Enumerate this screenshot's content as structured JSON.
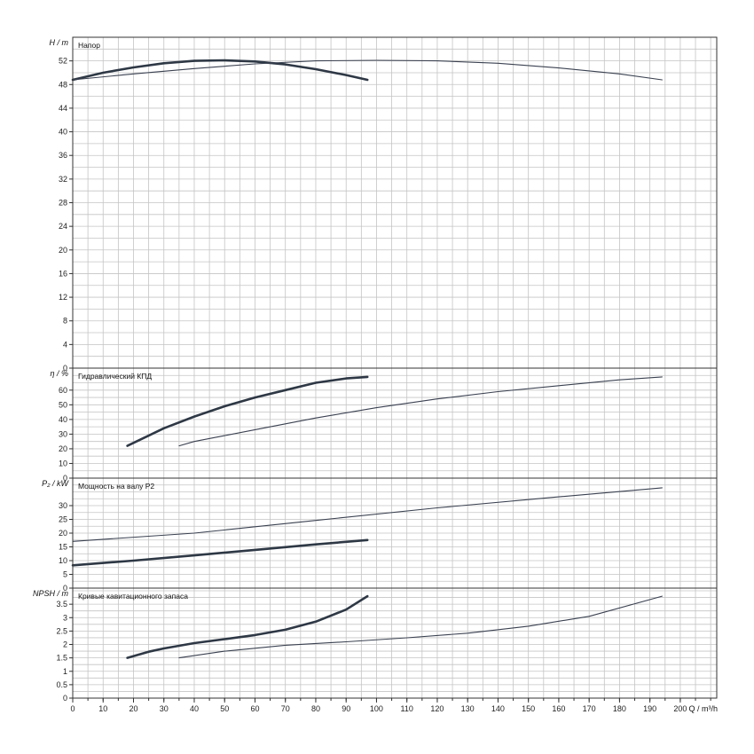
{
  "chart_data": {
    "type": "line",
    "x": {
      "label": "Q / m³/h",
      "range": [
        0,
        212
      ],
      "ticks": [
        0,
        10,
        20,
        30,
        40,
        50,
        60,
        70,
        80,
        90,
        100,
        110,
        120,
        130,
        140,
        150,
        160,
        170,
        180,
        190,
        200
      ],
      "grid_step": 5
    },
    "panels": [
      {
        "id": "head",
        "title": "Напор",
        "ylabel": "H / m",
        "yrange": [
          0,
          56
        ],
        "yticks": [
          0,
          4,
          8,
          12,
          16,
          20,
          24,
          28,
          32,
          36,
          40,
          44,
          48,
          52
        ],
        "grid_step": 2,
        "series": [
          {
            "weight": "thick",
            "points": [
              [
                0,
                48.8
              ],
              [
                10,
                50.0
              ],
              [
                20,
                50.9
              ],
              [
                30,
                51.6
              ],
              [
                40,
                52.0
              ],
              [
                50,
                52.1
              ],
              [
                60,
                51.9
              ],
              [
                70,
                51.4
              ],
              [
                80,
                50.6
              ],
              [
                90,
                49.6
              ],
              [
                97,
                48.8
              ]
            ]
          },
          {
            "weight": "thin",
            "points": [
              [
                0,
                48.8
              ],
              [
                20,
                49.8
              ],
              [
                40,
                50.7
              ],
              [
                60,
                51.5
              ],
              [
                80,
                52.0
              ],
              [
                100,
                52.1
              ],
              [
                120,
                52.0
              ],
              [
                140,
                51.6
              ],
              [
                160,
                50.8
              ],
              [
                180,
                49.8
              ],
              [
                194,
                48.8
              ]
            ]
          }
        ]
      },
      {
        "id": "efficiency",
        "title": "Гидравлический КПД",
        "ylabel": "η / %",
        "yrange": [
          0,
          75
        ],
        "yticks": [
          0,
          10,
          20,
          30,
          40,
          50,
          60
        ],
        "grid_step": 5,
        "series": [
          {
            "weight": "thick",
            "points": [
              [
                18,
                22
              ],
              [
                25,
                29
              ],
              [
                30,
                34
              ],
              [
                40,
                42
              ],
              [
                50,
                49
              ],
              [
                60,
                55
              ],
              [
                70,
                60
              ],
              [
                80,
                65
              ],
              [
                90,
                68
              ],
              [
                97,
                69
              ]
            ]
          },
          {
            "weight": "thin",
            "points": [
              [
                35,
                22
              ],
              [
                40,
                25
              ],
              [
                50,
                29
              ],
              [
                60,
                33
              ],
              [
                80,
                41
              ],
              [
                100,
                48
              ],
              [
                120,
                54
              ],
              [
                140,
                59
              ],
              [
                160,
                63
              ],
              [
                180,
                67
              ],
              [
                194,
                69
              ]
            ]
          }
        ]
      },
      {
        "id": "power",
        "title": "Мощность на валу P2",
        "ylabel": "P₂ / kW",
        "yrange": [
          0,
          40
        ],
        "yticks": [
          0,
          5,
          10,
          15,
          20,
          25,
          30
        ],
        "grid_step": 2.5,
        "series": [
          {
            "weight": "thick",
            "points": [
              [
                0,
                8.3
              ],
              [
                20,
                10.0
              ],
              [
                40,
                11.9
              ],
              [
                60,
                13.9
              ],
              [
                80,
                15.9
              ],
              [
                97,
                17.5
              ]
            ]
          },
          {
            "weight": "thin",
            "points": [
              [
                0,
                17.0
              ],
              [
                40,
                20.0
              ],
              [
                80,
                24.6
              ],
              [
                120,
                29.2
              ],
              [
                160,
                33.2
              ],
              [
                194,
                36.5
              ]
            ]
          }
        ]
      },
      {
        "id": "npsh",
        "title": "Кривые кавитационного запаса",
        "ylabel": "NPSH / m",
        "yrange": [
          0,
          4.1
        ],
        "yticks": [
          0,
          0.5,
          1,
          1.5,
          2,
          2.5,
          3,
          3.5
        ],
        "grid_step": 0.25,
        "series": [
          {
            "weight": "thick",
            "points": [
              [
                18,
                1.5
              ],
              [
                25,
                1.73
              ],
              [
                30,
                1.85
              ],
              [
                40,
                2.05
              ],
              [
                50,
                2.2
              ],
              [
                60,
                2.35
              ],
              [
                70,
                2.55
              ],
              [
                80,
                2.85
              ],
              [
                90,
                3.3
              ],
              [
                97,
                3.8
              ]
            ]
          },
          {
            "weight": "thin",
            "points": [
              [
                35,
                1.5
              ],
              [
                50,
                1.75
              ],
              [
                70,
                1.97
              ],
              [
                90,
                2.1
              ],
              [
                110,
                2.25
              ],
              [
                130,
                2.42
              ],
              [
                150,
                2.68
              ],
              [
                170,
                3.05
              ],
              [
                194,
                3.8
              ]
            ]
          }
        ]
      }
    ],
    "grid": true,
    "legend": "none"
  }
}
